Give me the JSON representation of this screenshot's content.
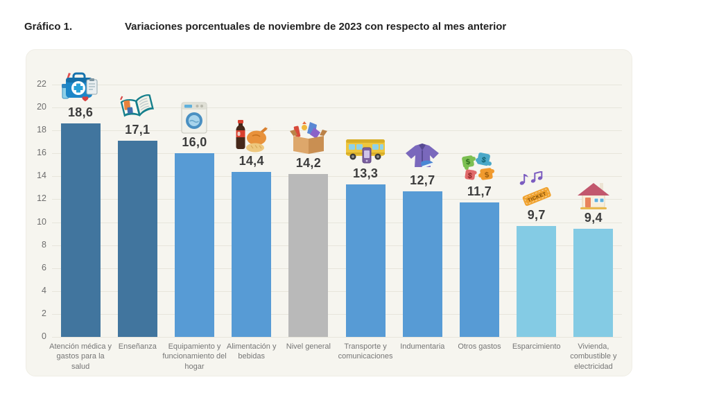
{
  "header": {
    "figure_label": "Gráfico 1.",
    "title": "Variaciones porcentuales de noviembre de 2023 con respecto al mes anterior"
  },
  "chart_data": {
    "type": "bar",
    "title": "Variaciones porcentuales de noviembre de 2023 con respecto al mes anterior",
    "xlabel": "",
    "ylabel": "",
    "ylim": [
      0,
      22
    ],
    "ytick_step": 2,
    "grid": true,
    "legend": "none",
    "value_format": "decimal-comma",
    "categories": [
      "Atención médica y gastos para la salud",
      "Enseñanza",
      "Equipamiento y funcionamiento del hogar",
      "Alimentación y bebidas",
      "Nivel general",
      "Transporte y comunicaciones",
      "Indumentaria",
      "Otros gastos",
      "Esparcimiento",
      "Vivienda, combustible y electricidad"
    ],
    "values": [
      18.6,
      17.1,
      16.0,
      14.4,
      14.2,
      13.3,
      12.7,
      11.7,
      9.7,
      9.4
    ],
    "value_labels": [
      "18,6",
      "17,1",
      "16,0",
      "14,4",
      "14,2",
      "13,3",
      "12,7",
      "11,7",
      "9,7",
      "9,4"
    ],
    "icons": [
      "medical-kit",
      "open-book",
      "washing-machine",
      "food-and-drink",
      "product-box",
      "bus-and-phone",
      "jacket",
      "money-puzzle",
      "ticket-and-music",
      "house"
    ],
    "bar_colors": [
      "#41759e",
      "#41759e",
      "#579bd5",
      "#579bd5",
      "#b9b9b9",
      "#579bd5",
      "#579bd5",
      "#579bd5",
      "#84cbe4",
      "#84cbe4"
    ]
  },
  "colors": {
    "page_bg": "#ffffff",
    "panel_bg": "#f6f5ef",
    "gridline": "#e7e5db",
    "dark_blue_bar": "#41759e",
    "mid_blue_bar": "#579bd5",
    "gray_bar": "#b9b9b9",
    "light_blue_bar": "#84cbe4",
    "value_text": "#3c3c3c",
    "axis_text": "#6d6d6d",
    "category_text": "#757575",
    "title_text": "#222222"
  }
}
